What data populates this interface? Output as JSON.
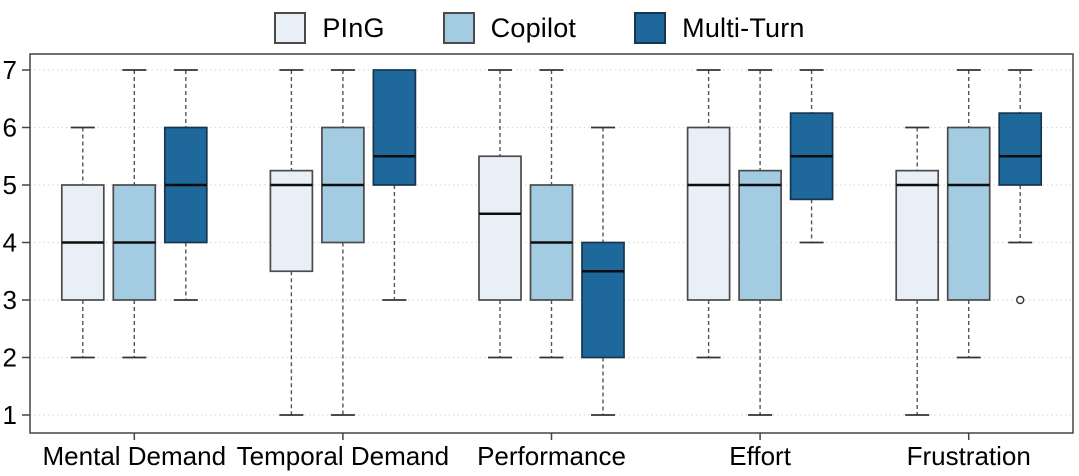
{
  "legend": {
    "items": [
      {
        "label": "PInG",
        "color": "#e9eff7",
        "border": "#4a4a4a"
      },
      {
        "label": "Copilot",
        "color": "#a3cbe1",
        "border": "#4a4a4a"
      },
      {
        "label": "Multi-Turn",
        "color": "#1f689c",
        "border": "#16364f"
      }
    ]
  },
  "chart_data": {
    "type": "boxplot",
    "title": "",
    "xlabel": "",
    "ylabel": "",
    "categories": [
      "Mental Demand",
      "Temporal Demand",
      "Performance",
      "Effort",
      "Frustration"
    ],
    "y_ticks": [
      1,
      2,
      3,
      4,
      5,
      6,
      7
    ],
    "ylim": [
      0.7,
      7.3
    ],
    "grid": "horizontal-dotted",
    "legend_position": "top",
    "colors": {
      "grid": "#dcdcdc",
      "plot_border": "#444444",
      "whisker": "#555555",
      "cap": "#333333",
      "median": "#0d0d0d",
      "tick_text": "#000000"
    },
    "series": [
      {
        "name": "PInG",
        "fill": "#e9eff7",
        "stroke": "#4a4a4a",
        "boxes": [
          {
            "whislo": 2,
            "q1": 3,
            "med": 4,
            "q3": 5,
            "whishi": 6,
            "outliers": []
          },
          {
            "whislo": 1,
            "q1": 3.5,
            "med": 5,
            "q3": 5.25,
            "whishi": 7,
            "outliers": []
          },
          {
            "whislo": 2,
            "q1": 3,
            "med": 4.5,
            "q3": 5.5,
            "whishi": 7,
            "outliers": []
          },
          {
            "whislo": 2,
            "q1": 3,
            "med": 5,
            "q3": 6,
            "whishi": 7,
            "outliers": []
          },
          {
            "whislo": 1,
            "q1": 3,
            "med": 5,
            "q3": 5.25,
            "whishi": 6,
            "outliers": []
          }
        ]
      },
      {
        "name": "Copilot",
        "fill": "#a3cbe1",
        "stroke": "#4a4a4a",
        "boxes": [
          {
            "whislo": 2,
            "q1": 3,
            "med": 4,
            "q3": 5,
            "whishi": 7,
            "outliers": []
          },
          {
            "whislo": 1,
            "q1": 4,
            "med": 5,
            "q3": 6,
            "whishi": 7,
            "outliers": []
          },
          {
            "whislo": 2,
            "q1": 3,
            "med": 4,
            "q3": 5,
            "whishi": 7,
            "outliers": []
          },
          {
            "whislo": 1,
            "q1": 3,
            "med": 5,
            "q3": 5.25,
            "whishi": 7,
            "outliers": []
          },
          {
            "whislo": 2,
            "q1": 3,
            "med": 5,
            "q3": 6,
            "whishi": 7,
            "outliers": []
          }
        ]
      },
      {
        "name": "Multi-Turn",
        "fill": "#1f689c",
        "stroke": "#16364f",
        "boxes": [
          {
            "whislo": 3,
            "q1": 4,
            "med": 5,
            "q3": 6,
            "whishi": 7,
            "outliers": []
          },
          {
            "whislo": 3,
            "q1": 5,
            "med": 5.5,
            "q3": 7,
            "whishi": 7,
            "outliers": []
          },
          {
            "whislo": 1,
            "q1": 2,
            "med": 3.5,
            "q3": 4,
            "whishi": 6,
            "outliers": []
          },
          {
            "whislo": 4,
            "q1": 4.75,
            "med": 5.5,
            "q3": 6.25,
            "whishi": 7,
            "outliers": []
          },
          {
            "whislo": 4,
            "q1": 5,
            "med": 5.5,
            "q3": 6.25,
            "whishi": 7,
            "outliers": [
              3
            ]
          }
        ]
      }
    ]
  }
}
